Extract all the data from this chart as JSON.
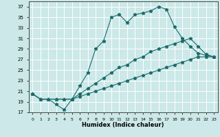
{
  "xlabel": "Humidex (Indice chaleur)",
  "background_color": "#cce8e8",
  "line_color": "#1a6b6b",
  "grid_color": "#ffffff",
  "xlim": [
    -0.5,
    23.5
  ],
  "ylim": [
    17,
    38
  ],
  "yticks": [
    17,
    19,
    21,
    23,
    25,
    27,
    29,
    31,
    33,
    35,
    37
  ],
  "xticks": [
    0,
    1,
    2,
    3,
    4,
    5,
    6,
    7,
    8,
    9,
    10,
    11,
    12,
    13,
    14,
    15,
    16,
    17,
    18,
    19,
    20,
    21,
    22,
    23
  ],
  "line1_x": [
    0,
    1,
    2,
    3,
    4,
    5,
    6,
    7,
    8,
    9,
    10,
    11,
    12,
    13,
    14,
    15,
    16,
    17,
    18,
    19,
    20,
    21,
    22,
    23
  ],
  "line1_y": [
    20.5,
    19.5,
    19.5,
    18.5,
    17.5,
    19.5,
    22.0,
    24.5,
    29.0,
    30.5,
    35.0,
    35.5,
    34.0,
    35.5,
    35.8,
    36.2,
    37.0,
    36.5,
    33.2,
    31.0,
    29.5,
    28.2,
    27.8,
    27.5
  ],
  "line2_x": [
    0,
    1,
    2,
    3,
    4,
    5,
    6,
    7,
    8,
    9,
    10,
    11,
    12,
    13,
    14,
    15,
    16,
    17,
    18,
    19,
    20,
    21,
    22,
    23
  ],
  "line2_y": [
    20.5,
    19.5,
    19.5,
    19.5,
    19.5,
    19.5,
    20.5,
    21.5,
    22.5,
    23.5,
    24.5,
    25.5,
    26.0,
    27.0,
    27.5,
    28.5,
    29.0,
    29.5,
    30.0,
    30.5,
    31.0,
    29.5,
    28.0,
    27.5
  ],
  "line3_x": [
    0,
    1,
    2,
    3,
    4,
    5,
    6,
    7,
    8,
    9,
    10,
    11,
    12,
    13,
    14,
    15,
    16,
    17,
    18,
    19,
    20,
    21,
    22,
    23
  ],
  "line3_y": [
    20.5,
    19.5,
    19.5,
    19.5,
    19.5,
    19.5,
    20.0,
    20.5,
    21.0,
    21.5,
    22.0,
    22.5,
    23.0,
    23.5,
    24.0,
    24.5,
    25.0,
    25.5,
    26.0,
    26.5,
    27.0,
    27.5,
    27.5,
    27.5
  ]
}
